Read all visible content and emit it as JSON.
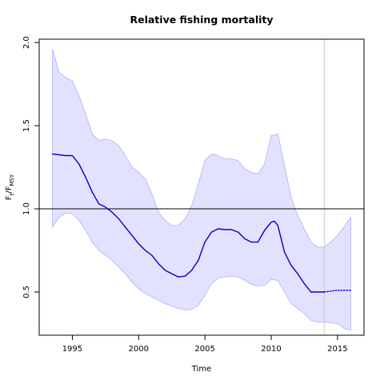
{
  "chart_data": {
    "type": "line",
    "title": "Relative fishing mortality",
    "xlabel": "Time",
    "ylabel": {
      "base1": "F",
      "sub1": "t",
      "sep": "/F",
      "sub2": "MSY"
    },
    "xlim": [
      1992.5,
      2017.0
    ],
    "ylim": [
      0.24,
      2.02
    ],
    "x_ticks": [
      {
        "value": 1995,
        "label": "1995"
      },
      {
        "value": 2000,
        "label": "2000"
      },
      {
        "value": 2005,
        "label": "2005"
      },
      {
        "value": 2010,
        "label": "2010"
      },
      {
        "value": 2015,
        "label": "2015"
      }
    ],
    "y_ticks": [
      {
        "value": 0.5,
        "label": "0.5"
      },
      {
        "value": 1.0,
        "label": "1.0"
      },
      {
        "value": 1.5,
        "label": "1.5"
      },
      {
        "value": 2.0,
        "label": "2.0"
      }
    ],
    "reference_line": {
      "y": 1.0,
      "color": "#000000"
    },
    "vertical_marker": {
      "x": 2014.0,
      "color": "#c8c8c8"
    },
    "colors": {
      "line": "#0000cc",
      "band_fill": "#e2e2ff",
      "band_edge": "#a8a8ee"
    },
    "series": [
      {
        "x": [
          1993.5,
          1994.0,
          1994.5,
          1995.0,
          1995.5,
          1996.0,
          1996.5,
          1997.0,
          1997.5,
          1998.0,
          1998.5,
          1999.0,
          1999.5,
          2000.0,
          2000.5,
          2001.0,
          2001.5,
          2002.0,
          2002.5,
          2003.0,
          2003.5,
          2004.0,
          2004.5,
          2005.0,
          2005.5,
          2006.0,
          2006.5,
          2007.0,
          2007.5,
          2008.0,
          2008.5,
          2009.0,
          2009.5,
          2010.0,
          2010.25,
          2010.5,
          2011.0,
          2011.5,
          2012.0,
          2012.5,
          2013.0,
          2013.5,
          2014.0
        ],
        "y": [
          1.33,
          1.325,
          1.32,
          1.32,
          1.27,
          1.19,
          1.1,
          1.03,
          1.01,
          0.98,
          0.94,
          0.89,
          0.84,
          0.79,
          0.75,
          0.72,
          0.67,
          0.63,
          0.61,
          0.59,
          0.595,
          0.63,
          0.69,
          0.8,
          0.86,
          0.88,
          0.875,
          0.875,
          0.86,
          0.82,
          0.8,
          0.8,
          0.87,
          0.92,
          0.925,
          0.9,
          0.74,
          0.66,
          0.61,
          0.55,
          0.5,
          0.5,
          0.5
        ],
        "style": "solid"
      },
      {
        "x": [
          2014.0,
          2014.5,
          2015.0,
          2015.5,
          2016.0
        ],
        "y": [
          0.5,
          0.505,
          0.51,
          0.51,
          0.51
        ],
        "style": "dotted"
      }
    ],
    "band": {
      "x": [
        1993.5,
        1994.0,
        1994.5,
        1995.0,
        1995.5,
        1996.0,
        1996.5,
        1997.0,
        1997.5,
        1998.0,
        1998.5,
        1999.0,
        1999.5,
        2000.0,
        2000.5,
        2001.0,
        2001.5,
        2002.0,
        2002.5,
        2003.0,
        2003.5,
        2004.0,
        2004.5,
        2005.0,
        2005.5,
        2006.0,
        2006.5,
        2007.0,
        2007.5,
        2008.0,
        2008.5,
        2009.0,
        2009.5,
        2010.0,
        2010.5,
        2011.0,
        2011.5,
        2012.0,
        2012.5,
        2013.0,
        2013.5,
        2014.0,
        2014.5,
        2015.0,
        2015.5,
        2016.0
      ],
      "upper": [
        1.96,
        1.82,
        1.79,
        1.77,
        1.68,
        1.57,
        1.45,
        1.41,
        1.42,
        1.41,
        1.38,
        1.32,
        1.25,
        1.22,
        1.18,
        1.09,
        0.98,
        0.93,
        0.9,
        0.9,
        0.94,
        1.02,
        1.15,
        1.29,
        1.33,
        1.32,
        1.3,
        1.3,
        1.29,
        1.24,
        1.22,
        1.21,
        1.27,
        1.44,
        1.45,
        1.26,
        1.07,
        0.96,
        0.88,
        0.8,
        0.77,
        0.77,
        0.8,
        0.84,
        0.89,
        0.95
      ],
      "lower": [
        0.89,
        0.95,
        0.975,
        0.97,
        0.93,
        0.87,
        0.8,
        0.75,
        0.72,
        0.69,
        0.65,
        0.61,
        0.56,
        0.52,
        0.49,
        0.47,
        0.45,
        0.43,
        0.415,
        0.4,
        0.39,
        0.395,
        0.42,
        0.48,
        0.55,
        0.585,
        0.59,
        0.595,
        0.59,
        0.57,
        0.545,
        0.535,
        0.54,
        0.575,
        0.57,
        0.5,
        0.43,
        0.4,
        0.37,
        0.33,
        0.32,
        0.32,
        0.315,
        0.31,
        0.28,
        0.27
      ]
    }
  }
}
